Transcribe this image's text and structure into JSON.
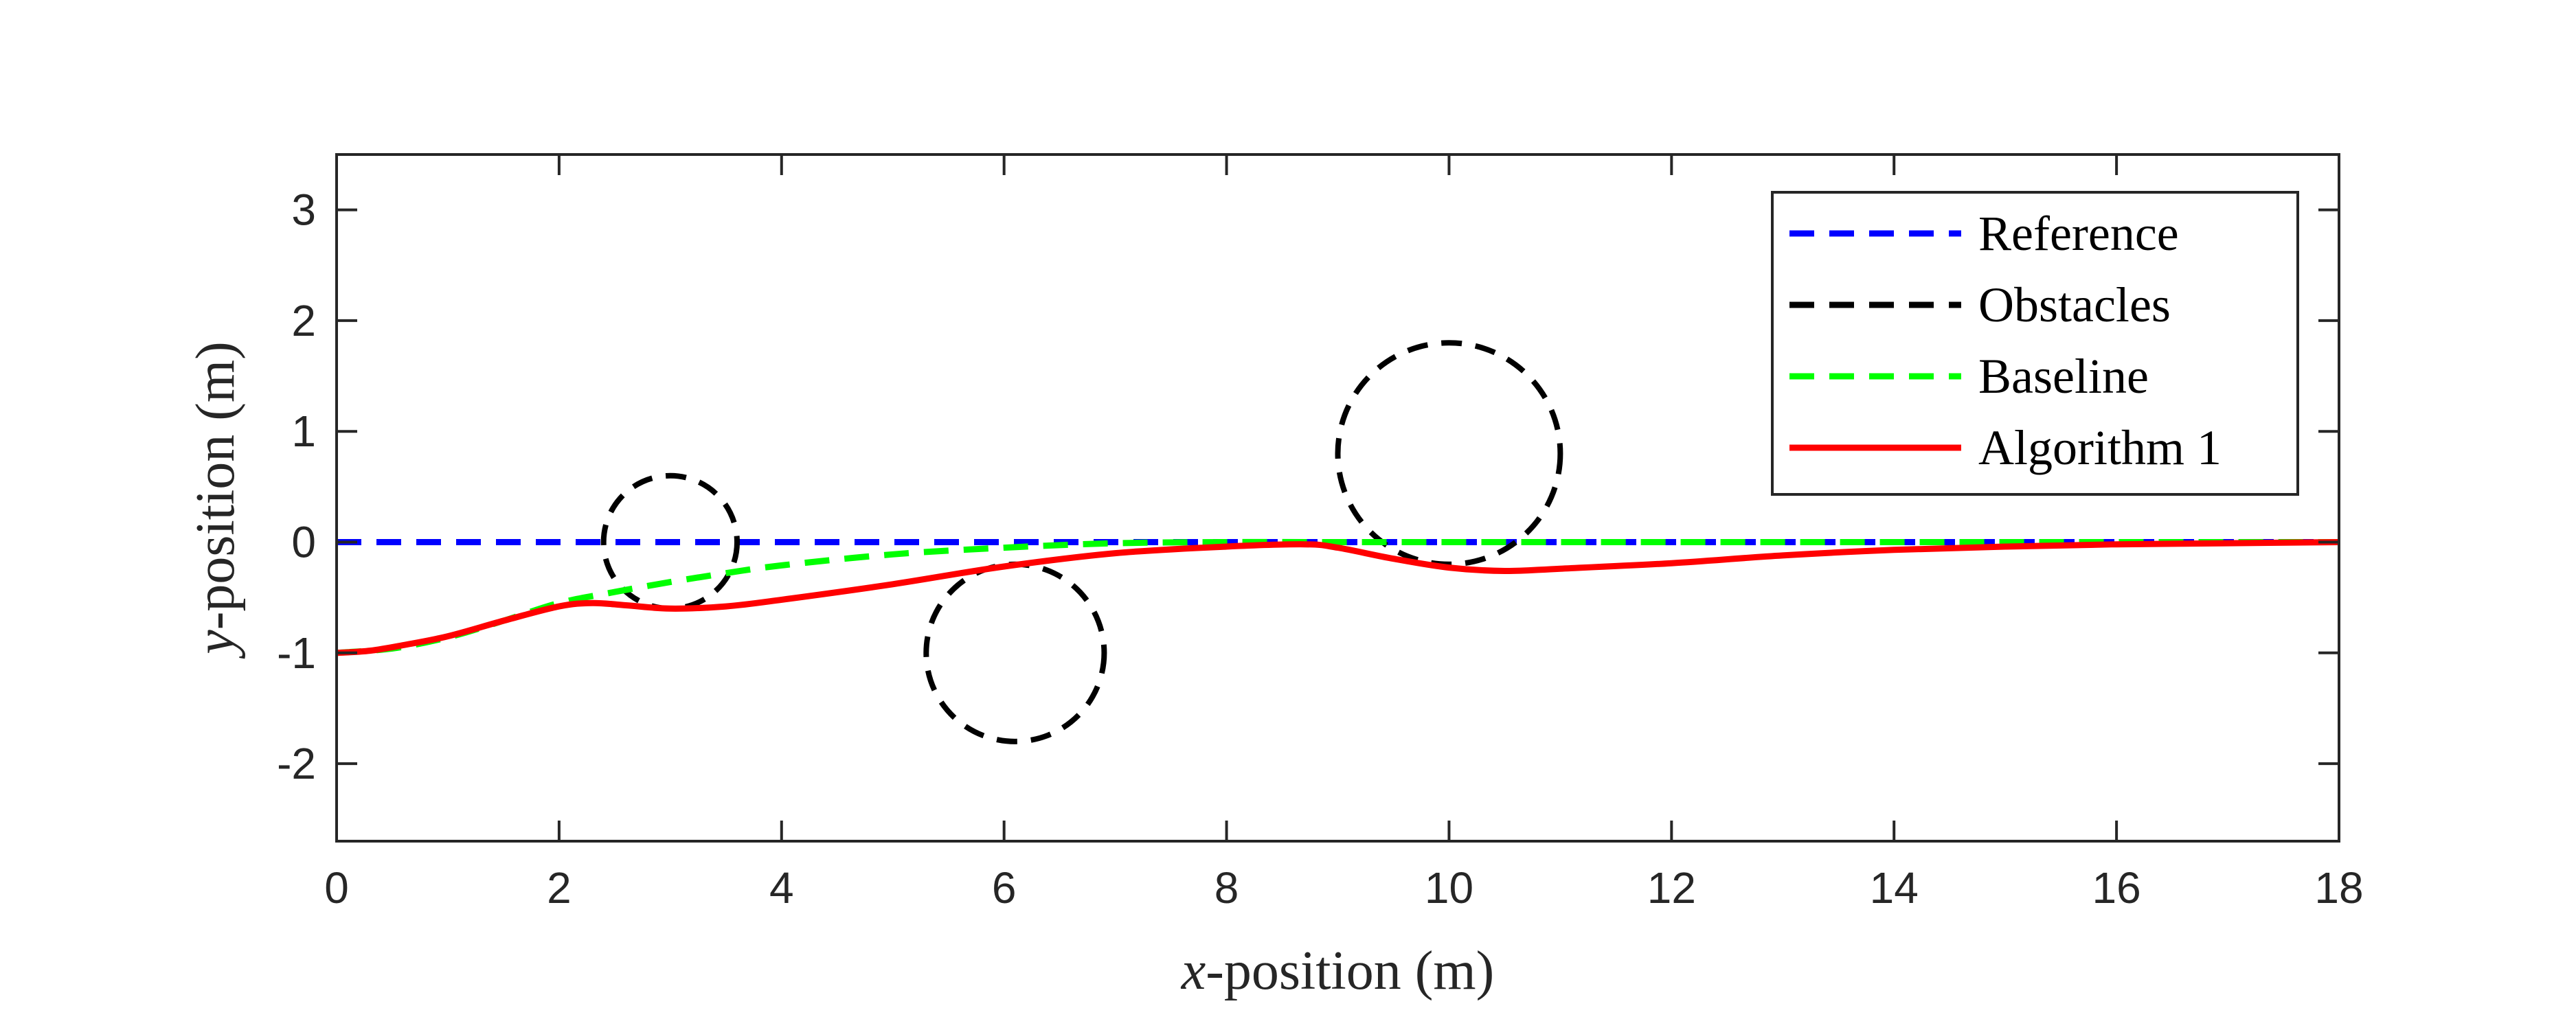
{
  "chart_data": {
    "type": "line",
    "title": "",
    "xlabel_var": "x",
    "xlabel_rest": "-position (m)",
    "ylabel_var": "y",
    "ylabel_rest": "-position (m)",
    "xlim": [
      0,
      18
    ],
    "ylim": [
      -2.7,
      3.5
    ],
    "xticks": [
      0,
      2,
      4,
      6,
      8,
      10,
      12,
      14,
      16,
      18
    ],
    "yticks": [
      -2,
      -1,
      0,
      1,
      2,
      3
    ],
    "xtick_labels": [
      "0",
      "2",
      "4",
      "6",
      "8",
      "10",
      "12",
      "14",
      "16",
      "18"
    ],
    "ytick_labels": [
      "-2",
      "-1",
      "0",
      "1",
      "2",
      "3"
    ],
    "grid": false,
    "legend_position": "top-right",
    "legend": {
      "reference": "Reference",
      "obstacles": "Obstacles",
      "baseline": "Baseline",
      "algorithm": "Algorithm 1"
    },
    "colors": {
      "reference": "#0000ff",
      "obstacles": "#000000",
      "baseline": "#00ff00",
      "algorithm": "#ff0000",
      "axes": "#262626"
    },
    "obstacles": [
      {
        "cx": 3,
        "cy": 0,
        "r": 0.6
      },
      {
        "cx": 6.1,
        "cy": -1,
        "r": 0.8
      },
      {
        "cx": 10,
        "cy": 0.8,
        "r": 1.0
      }
    ],
    "series": [
      {
        "name": "Reference",
        "style": "dashed",
        "x": [
          0,
          18
        ],
        "y": [
          0,
          0
        ]
      },
      {
        "name": "Baseline",
        "style": "dashed",
        "x": [
          0,
          0.5,
          1,
          1.5,
          2,
          2.5,
          3,
          3.5,
          4,
          5,
          6,
          7,
          8,
          9,
          10,
          12,
          14,
          16,
          18
        ],
        "y": [
          -1.0,
          -0.96,
          -0.86,
          -0.71,
          -0.55,
          -0.45,
          -0.36,
          -0.28,
          -0.21,
          -0.11,
          -0.05,
          -0.01,
          0.0,
          0.0,
          0.0,
          0.0,
          0.0,
          0.0,
          0.0
        ]
      },
      {
        "name": "Algorithm 1",
        "style": "solid",
        "x": [
          0,
          0.3,
          0.6,
          1.0,
          1.5,
          2.0,
          2.3,
          2.6,
          3.0,
          3.5,
          4.0,
          5.0,
          6.0,
          7.0,
          8.0,
          8.7,
          9.0,
          9.5,
          10.0,
          10.5,
          11.0,
          12.0,
          13.0,
          14.0,
          15.0,
          16.0,
          17.0,
          18.0
        ],
        "y": [
          -1.0,
          -0.98,
          -0.93,
          -0.85,
          -0.71,
          -0.58,
          -0.55,
          -0.57,
          -0.6,
          -0.58,
          -0.52,
          -0.38,
          -0.22,
          -0.1,
          -0.04,
          -0.02,
          -0.05,
          -0.15,
          -0.23,
          -0.26,
          -0.24,
          -0.19,
          -0.12,
          -0.07,
          -0.04,
          -0.02,
          -0.01,
          0.0
        ]
      }
    ]
  }
}
